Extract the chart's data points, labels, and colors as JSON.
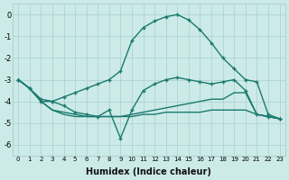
{
  "xlabel": "Humidex (Indice chaleur)",
  "x_values": [
    0,
    1,
    2,
    3,
    4,
    5,
    6,
    7,
    8,
    9,
    10,
    11,
    12,
    13,
    14,
    15,
    16,
    17,
    18,
    19,
    20,
    21,
    22,
    23
  ],
  "line1": [
    -3.0,
    -3.4,
    -4.0,
    -4.0,
    -3.8,
    -3.6,
    -3.4,
    -3.2,
    -3.0,
    -2.6,
    -1.2,
    -0.6,
    -0.3,
    -0.1,
    0.0,
    -0.25,
    -0.7,
    -1.3,
    -2.0,
    -2.5,
    -3.0,
    -3.1,
    -4.6,
    -4.8
  ],
  "line2": [
    -3.0,
    -3.4,
    -3.9,
    -4.0,
    -4.2,
    -4.5,
    -4.6,
    -4.7,
    -4.4,
    -5.7,
    -4.4,
    -3.5,
    -3.2,
    -3.0,
    -2.9,
    -3.0,
    -3.1,
    -3.2,
    -3.1,
    -3.0,
    -3.5,
    -4.6,
    -4.7,
    -4.8
  ],
  "line3": [
    -3.0,
    -3.4,
    -4.0,
    -4.4,
    -4.5,
    -4.6,
    -4.7,
    -4.7,
    -4.7,
    -4.7,
    -4.6,
    -4.5,
    -4.4,
    -4.3,
    -4.2,
    -4.1,
    -4.0,
    -3.9,
    -3.9,
    -3.6,
    -3.6,
    -4.6,
    -4.7,
    -4.8
  ],
  "line4": [
    -3.0,
    -3.4,
    -4.0,
    -4.4,
    -4.6,
    -4.7,
    -4.7,
    -4.7,
    -4.7,
    -4.7,
    -4.7,
    -4.6,
    -4.6,
    -4.5,
    -4.5,
    -4.5,
    -4.5,
    -4.4,
    -4.4,
    -4.4,
    -4.4,
    -4.6,
    -4.7,
    -4.8
  ],
  "line_color": "#1a7a6e",
  "bg_color": "#cceae8",
  "grid_color": "#aed4d2",
  "ylim": [
    -6.5,
    0.5
  ],
  "yticks": [
    0,
    -1,
    -2,
    -3,
    -4,
    -5,
    -6
  ],
  "xlim": [
    -0.5,
    23.5
  ]
}
